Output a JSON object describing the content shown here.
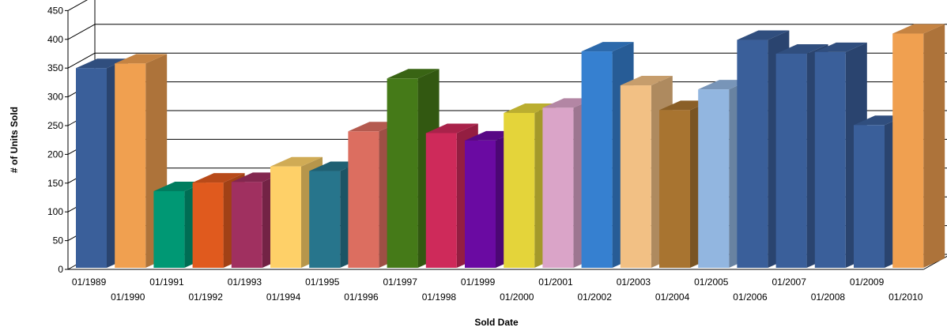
{
  "chart_data": {
    "type": "bar",
    "title": "",
    "xlabel": "Sold Date",
    "ylabel": "# of Units Sold",
    "ylim": [
      0,
      450
    ],
    "yticks": [
      0,
      50,
      100,
      150,
      200,
      250,
      300,
      350,
      400,
      450
    ],
    "grid": true,
    "legend": "none",
    "three_d": true,
    "categories": [
      "01/1989",
      "01/1990",
      "01/1991",
      "01/1992",
      "01/1993",
      "01/1994",
      "01/1995",
      "01/1996",
      "01/1997",
      "01/1998",
      "01/1999",
      "01/2000",
      "01/2001",
      "01/2002",
      "01/2003",
      "01/2004",
      "01/2005",
      "01/2006",
      "01/2007",
      "01/2008",
      "01/2009",
      "01/2010"
    ],
    "values": [
      350,
      358,
      136,
      151,
      152,
      179,
      171,
      240,
      332,
      237,
      224,
      272,
      281,
      379,
      320,
      277,
      313,
      399,
      375,
      378,
      251,
      410
    ],
    "colors": [
      "#3A5F9A",
      "#F0A050",
      "#009874",
      "#E05A1E",
      "#A03060",
      "#FED068",
      "#27758C",
      "#DC6E60",
      "#457A18",
      "#CE2A5A",
      "#6A0AA2",
      "#E4D43A",
      "#DAA4C8",
      "#3680D0",
      "#F2C084",
      "#A87430",
      "#92B6E0",
      "#3A5F9A",
      "#3A5F9A",
      "#3A5F9A",
      "#3A5F9A",
      "#F0A050"
    ]
  }
}
